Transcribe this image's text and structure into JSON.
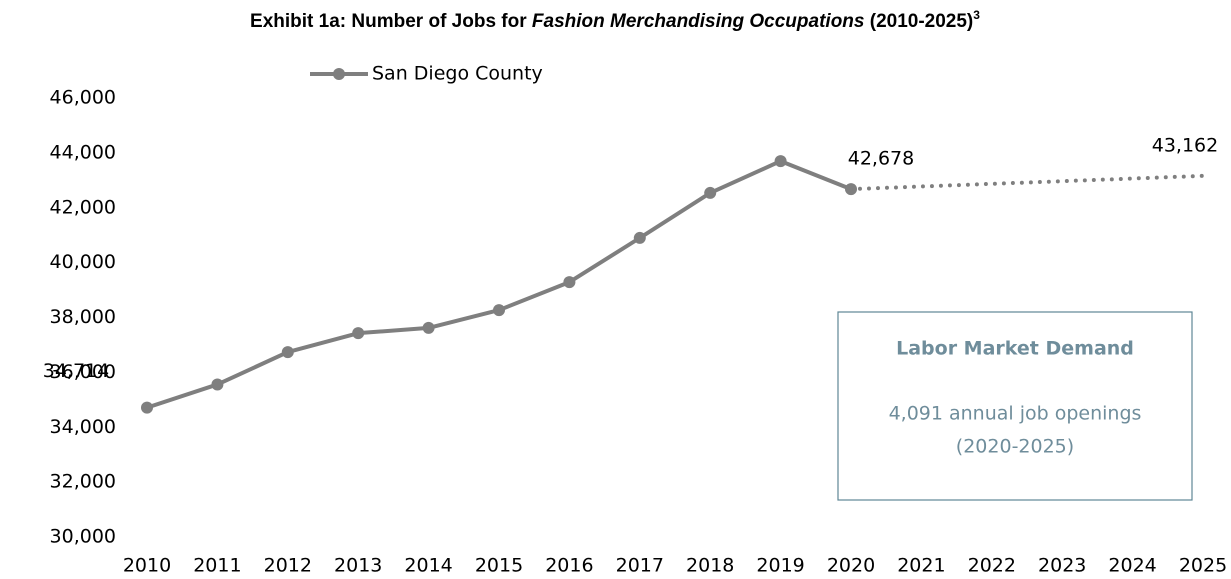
{
  "chart_data": {
    "type": "line",
    "title_parts": [
      "Exhibit 1a: Number of Jobs for ",
      "Fashion Merchandising Occupations",
      " (2010-2025)"
    ],
    "title_footnote": "3",
    "categories": [
      "2010",
      "2011",
      "2012",
      "2013",
      "2014",
      "2015",
      "2016",
      "2017",
      "2018",
      "2019",
      "2020",
      "2021",
      "2022",
      "2023",
      "2024",
      "2025"
    ],
    "series": [
      {
        "name": "San Diego County",
        "color": "#7f7f7f",
        "style": "solid",
        "values": [
          34714,
          35560,
          36740,
          37430,
          37620,
          38270,
          39290,
          40900,
          42540,
          43700,
          42678,
          null,
          null,
          null,
          null,
          null
        ],
        "value_labels": [
          "34,714",
          null,
          null,
          null,
          null,
          null,
          null,
          null,
          null,
          null,
          "42,678",
          null,
          null,
          null,
          null,
          null
        ]
      },
      {
        "color": "#7f7f7f",
        "style": "dotted",
        "values": [
          null,
          null,
          null,
          null,
          null,
          null,
          null,
          null,
          null,
          null,
          42678,
          42775,
          42872,
          42968,
          43065,
          43162
        ],
        "value_labels": [
          null,
          null,
          null,
          null,
          null,
          null,
          null,
          null,
          null,
          null,
          null,
          null,
          null,
          null,
          null,
          "43,162"
        ]
      }
    ],
    "ylim": [
      30000,
      46000
    ],
    "yticks": [
      {
        "value": 30000,
        "label": "30,000"
      },
      {
        "value": 32000,
        "label": "32,000"
      },
      {
        "value": 34000,
        "label": "34,000"
      },
      {
        "value": 36000,
        "label": "36,000"
      },
      {
        "value": 38000,
        "label": "38,000"
      },
      {
        "value": 40000,
        "label": "40,000"
      },
      {
        "value": 42000,
        "label": "42,000"
      },
      {
        "value": 44000,
        "label": "44,000"
      },
      {
        "value": 46000,
        "label": "46,000"
      }
    ],
    "grid": false,
    "legend": "top",
    "annotation": {
      "title": "Labor Market Demand",
      "lines": [
        "4,091 annual job openings",
        "(2020-2025)"
      ]
    }
  }
}
